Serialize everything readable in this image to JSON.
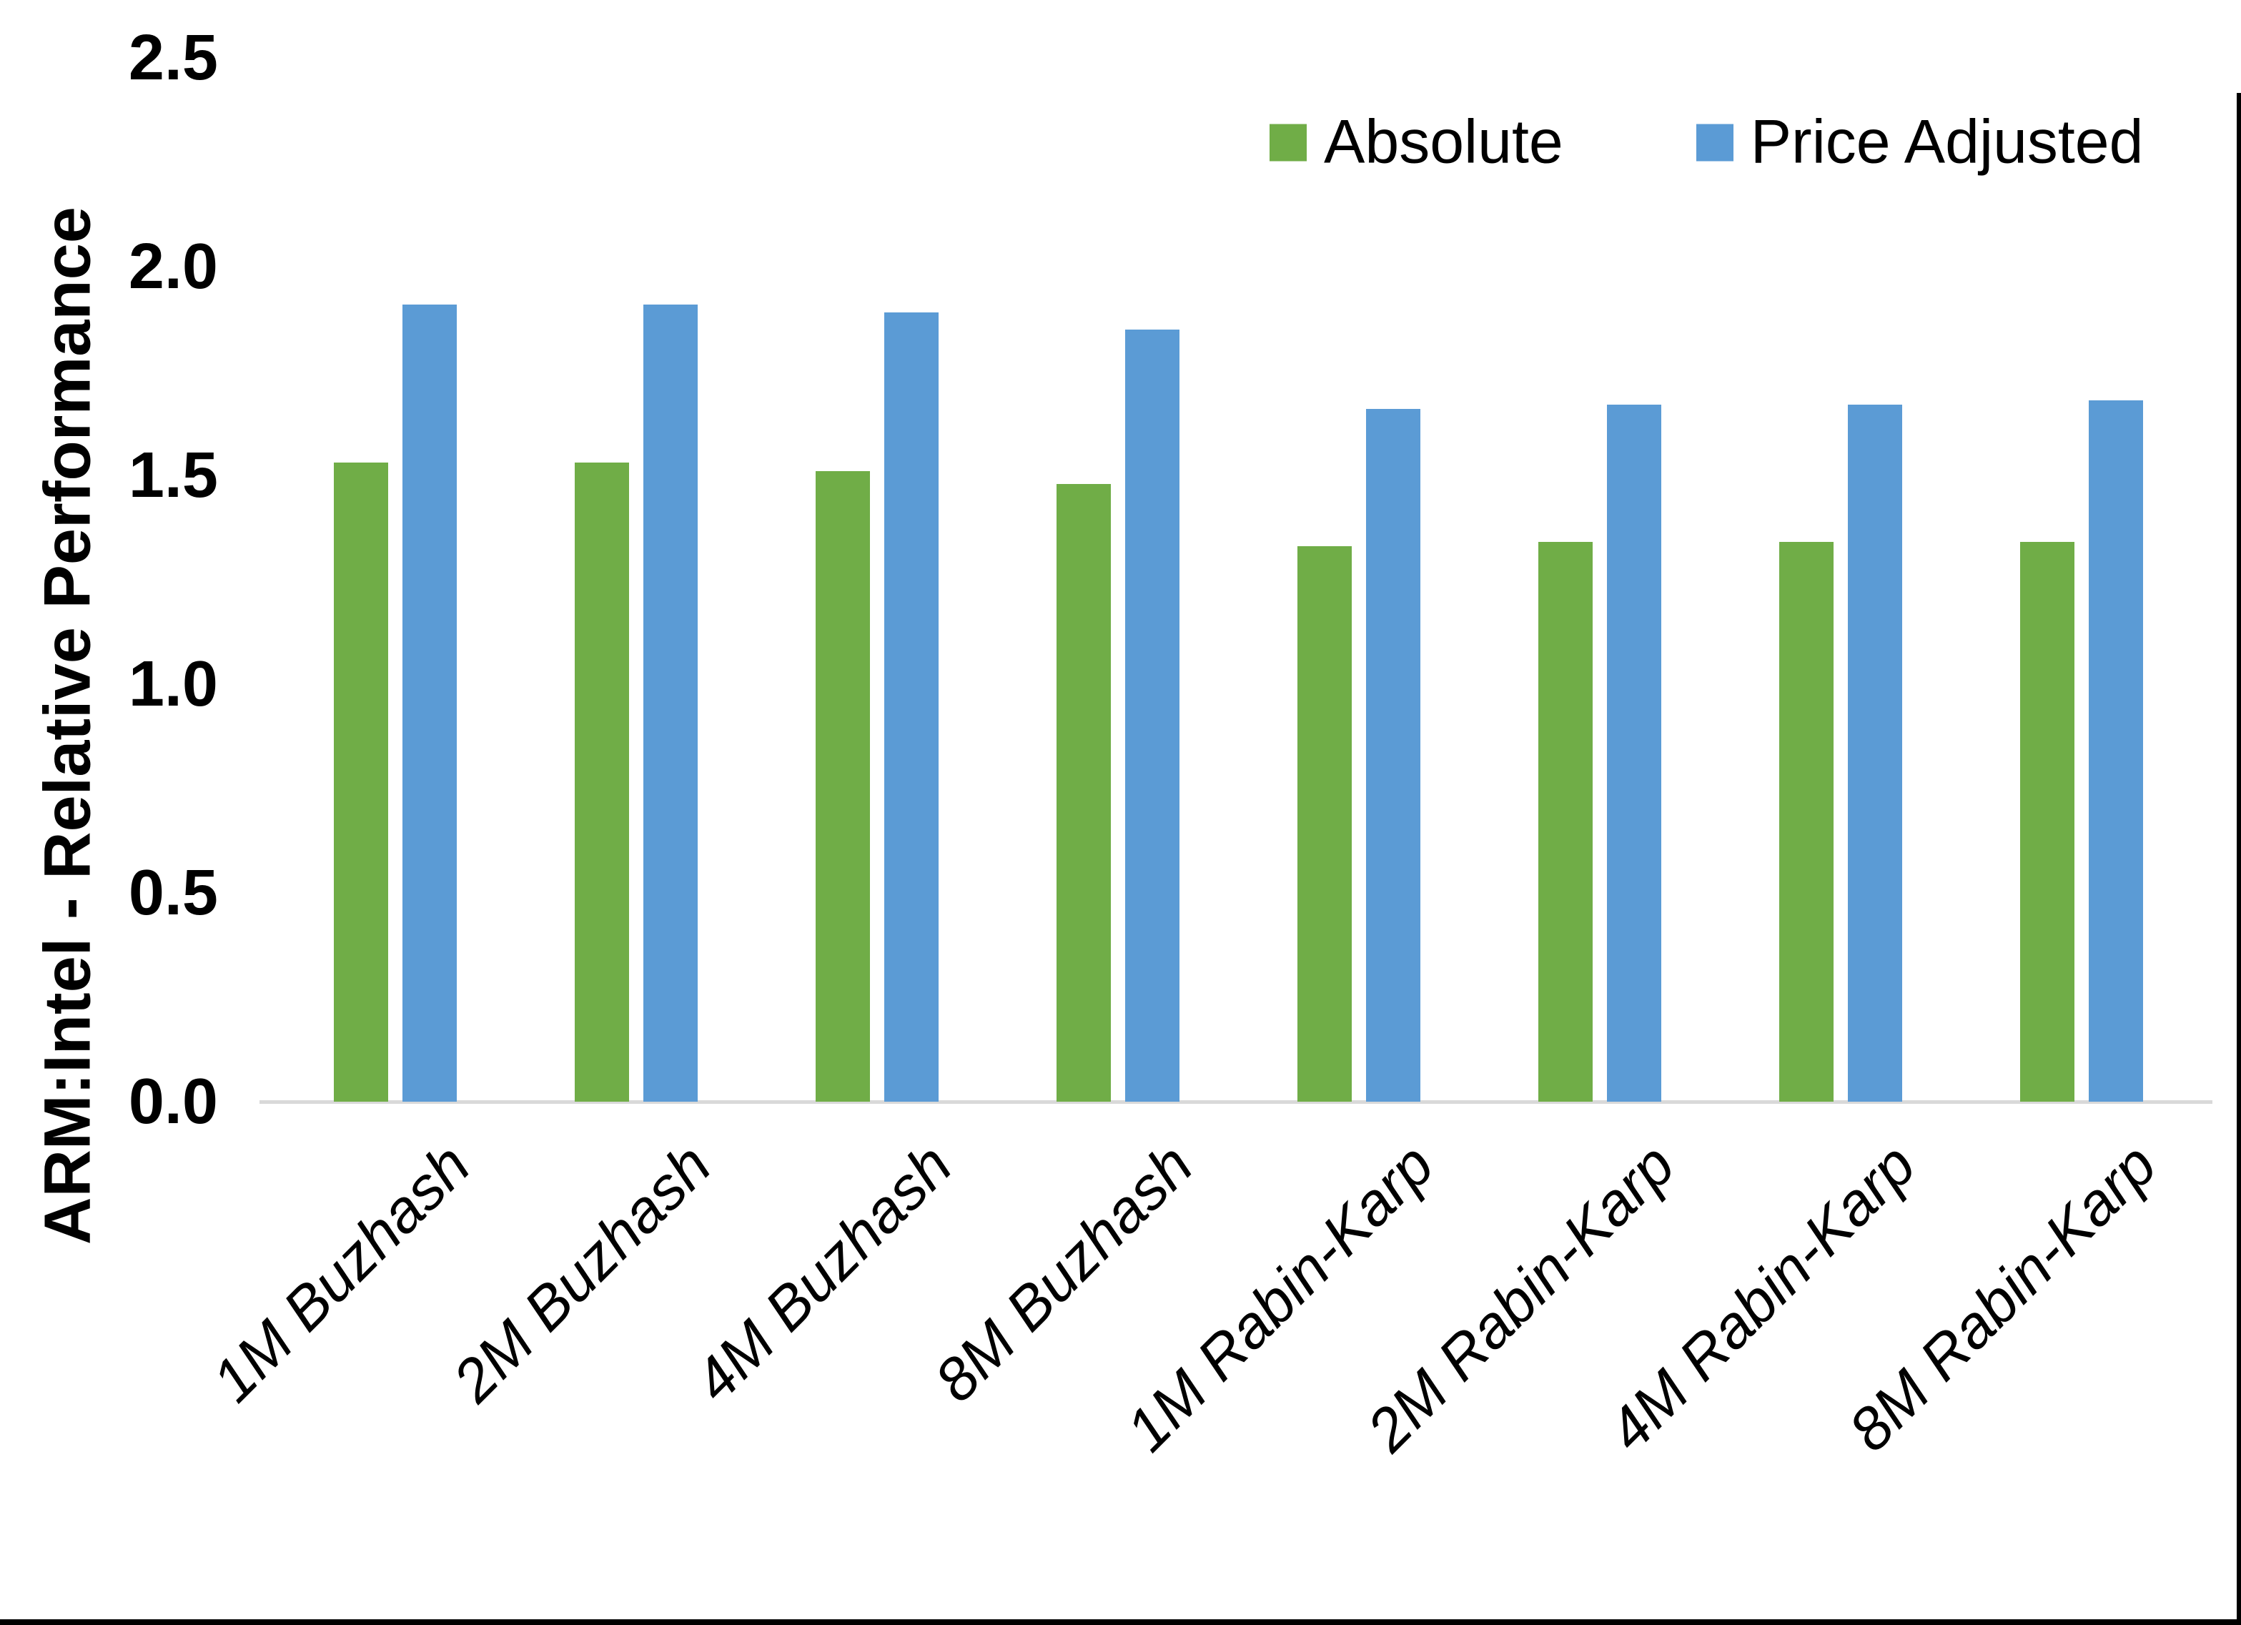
{
  "figure": {
    "background_color": "#FFFFFF",
    "frame_color": "#000000"
  },
  "chart_data": {
    "type": "bar",
    "title": "",
    "xlabel": "",
    "ylabel": "ARM:Intel - Relative Performance",
    "categories": [
      "1M Buzhash",
      "2M Buzhash",
      "4M Buzhash",
      "8M Buzhash",
      "1M Rabin-Karp",
      "2M Rabin-Karp",
      "4M Rabin-Karp",
      "8M Rabin-Karp"
    ],
    "series": [
      {
        "name": "Absolute",
        "color": "#70AD47",
        "values": [
          1.53,
          1.53,
          1.51,
          1.48,
          1.33,
          1.34,
          1.34,
          1.34
        ]
      },
      {
        "name": "Price Adjusted",
        "color": "#5B9BD5",
        "values": [
          1.91,
          1.91,
          1.89,
          1.85,
          1.66,
          1.67,
          1.67,
          1.68
        ]
      }
    ],
    "ylim": [
      0.0,
      2.5
    ],
    "ytick_labels": [
      "0.0",
      "0.5",
      "1.0",
      "1.5",
      "2.0",
      "2.5"
    ],
    "grid": false,
    "legend_position": "top-right",
    "axis_line_color": "#D9D9D9",
    "x_label_rotation_deg": 45,
    "x_label_style": "italic"
  }
}
